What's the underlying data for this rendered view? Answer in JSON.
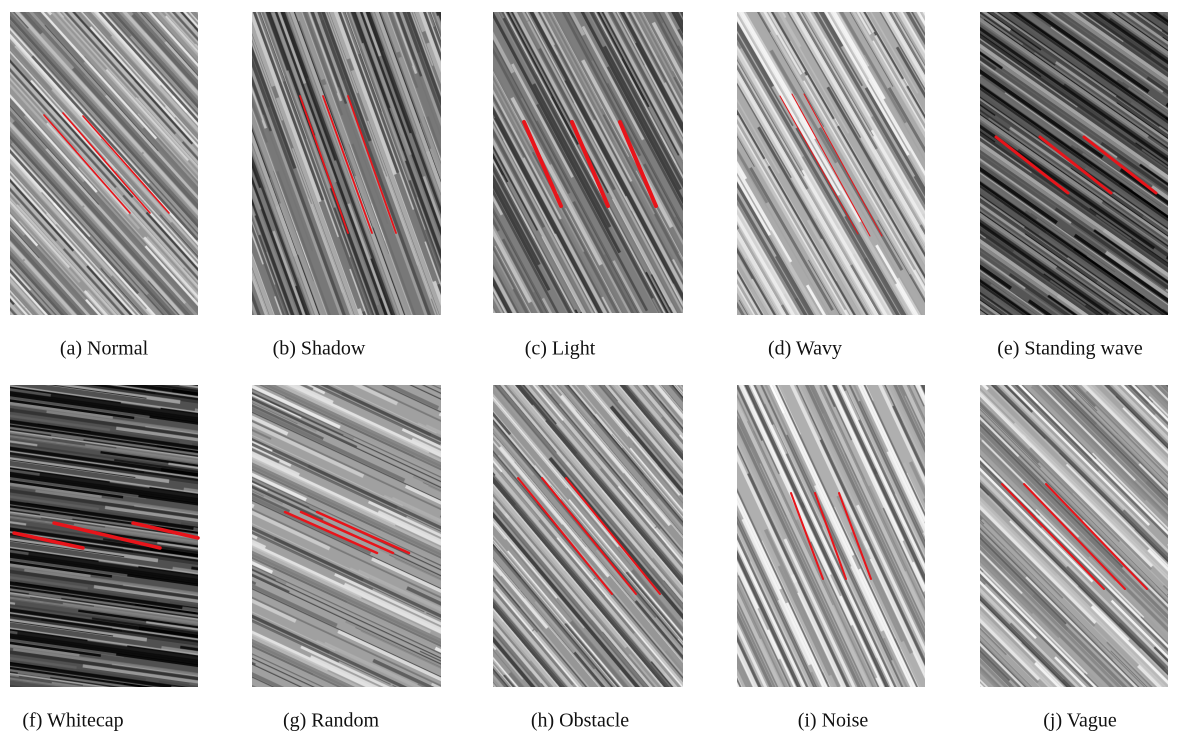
{
  "figure": {
    "panels": [
      {
        "caption": "(a) Normal"
      },
      {
        "caption": "(b) Shadow"
      },
      {
        "caption": "(c) Light"
      },
      {
        "caption": "(d) Wavy"
      },
      {
        "caption": "(e) Standing wave"
      },
      {
        "caption": "(f) Whitecap"
      },
      {
        "caption": "(g) Random"
      },
      {
        "caption": "(h) Obstacle"
      },
      {
        "caption": "(i) Noise"
      },
      {
        "caption": "(j) Vague"
      }
    ]
  }
}
